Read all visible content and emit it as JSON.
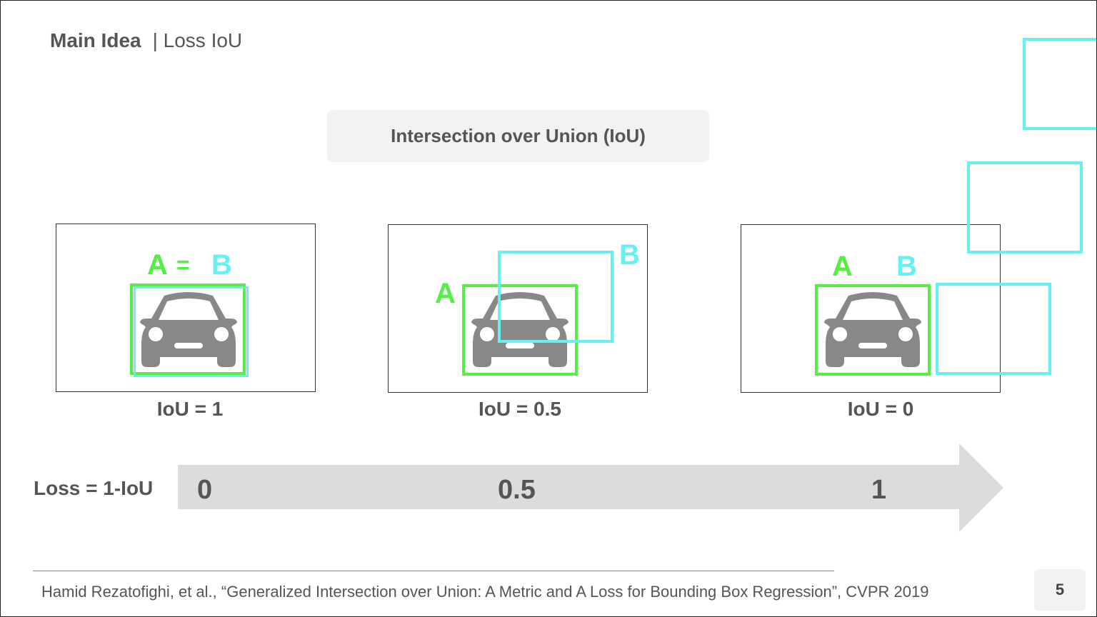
{
  "slide": {
    "title_main": "Main Idea",
    "title_sub": "| Loss IoU",
    "header": "Intersection over Union (IoU)",
    "panels": [
      {
        "label_a": "A",
        "eq": "=",
        "label_b": "B",
        "iou_text": "IoU = 1",
        "iou_value": 1
      },
      {
        "label_a": "A",
        "label_b": "B",
        "iou_text": "IoU = 0.5",
        "iou_value": 0.5
      },
      {
        "label_a": "A",
        "label_b": "B",
        "iou_text": "IoU = 0",
        "iou_value": 0
      }
    ],
    "loss": {
      "label": "Loss = 1-IoU",
      "values": [
        "0",
        "0.5",
        "1"
      ]
    },
    "citation": "Hamid Rezatofighi, et al., “Generalized Intersection over Union: A Metric and A Loss for Bounding Box Regression”, CVPR 2019",
    "page_number": "5"
  },
  "colors": {
    "box_a": "#55ee44",
    "box_b": "#66f0f0",
    "car": "#888888",
    "arrow": "#dcdcdc",
    "text": "#555555"
  },
  "icons": {
    "car": "car-front-icon"
  }
}
